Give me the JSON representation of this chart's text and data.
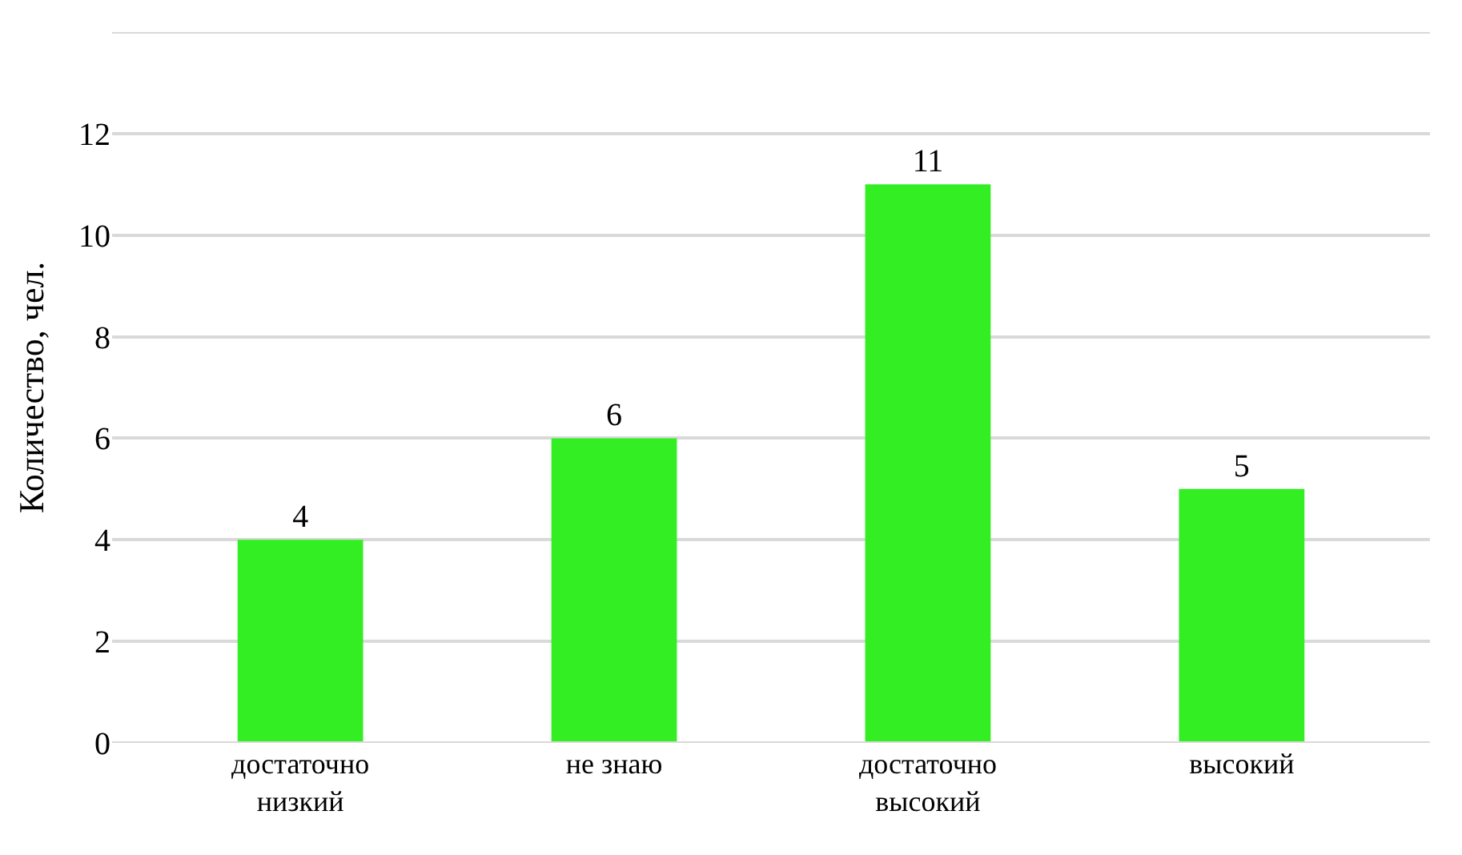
{
  "chart_data": {
    "type": "bar",
    "ylabel": "Количество, чел.",
    "categories": [
      "достаточно низкий",
      "не знаю",
      "достаточно высокий",
      "высокий"
    ],
    "values": [
      4,
      6,
      11,
      5
    ],
    "color": "#33ee22",
    "ylim": [
      0,
      14
    ],
    "yticks": [
      0,
      2,
      4,
      6,
      8,
      10,
      12,
      {
        "value": 14,
        "label": null
      }
    ],
    "grid": "y",
    "data_labels": true
  }
}
